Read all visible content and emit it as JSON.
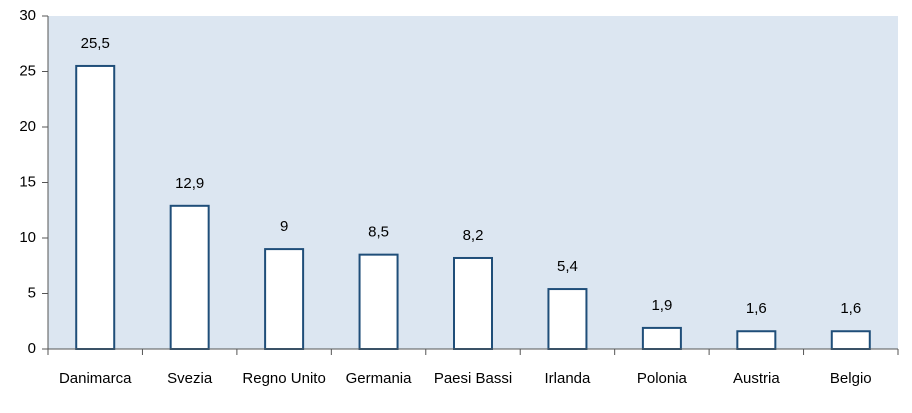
{
  "chart_data": {
    "type": "bar",
    "categories": [
      "Danimarca",
      "Svezia",
      "Regno Unito",
      "Germania",
      "Paesi Bassi",
      "Irlanda",
      "Polonia",
      "Austria",
      "Belgio"
    ],
    "values": [
      25.5,
      12.9,
      9,
      8.5,
      8.2,
      5.4,
      1.9,
      1.6,
      1.6
    ],
    "value_labels": [
      "25,5",
      "12,9",
      "9",
      "8,5",
      "8,2",
      "5,4",
      "1,9",
      "1,6",
      "1,6"
    ],
    "color": "#ffffff",
    "edge_color": "#1f4e79",
    "plot_background": "#dce6f1",
    "ylim": [
      0,
      30
    ],
    "yticks": [
      0,
      5,
      10,
      15,
      20,
      25,
      30
    ],
    "grid": false
  }
}
